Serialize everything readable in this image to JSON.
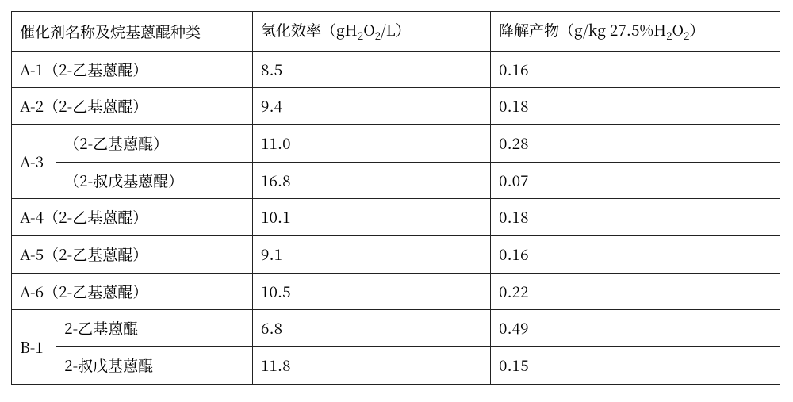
{
  "columns": {
    "c1": "催化剂名称及烷基蒽醌种类",
    "c2_prefix": "氢化效率（gH",
    "c2_sub1": "2",
    "c2_mid": "O",
    "c2_sub2": "2",
    "c2_suffix": "/L）",
    "c3_prefix": "降解产物（g/kg 27.5%H",
    "c3_sub1": "2",
    "c3_mid": "O",
    "c3_sub2": "2",
    "c3_suffix": "）"
  },
  "rows": [
    {
      "name": "A-1（2-乙基蒽醌）",
      "eff": "8.5",
      "deg": "0.16"
    },
    {
      "name": "A-2（2-乙基蒽醌）",
      "eff": "9.4",
      "deg": "0.18"
    }
  ],
  "group_a3": {
    "label": "A-3",
    "sub": [
      {
        "name": "（2-乙基蒽醌）",
        "eff": "11.0",
        "deg": "0.28"
      },
      {
        "name": "（2-叔戊基蒽醌）",
        "eff": "16.8",
        "deg": "0.07"
      }
    ]
  },
  "rows2": [
    {
      "name": "A-4（2-乙基蒽醌）",
      "eff": "10.1",
      "deg": "0.18"
    },
    {
      "name": "A-5（2-乙基蒽醌）",
      "eff": "9.1",
      "deg": "0.16"
    },
    {
      "name": "A-6（2-乙基蒽醌）",
      "eff": "10.5",
      "deg": "0.22"
    }
  ],
  "group_b1": {
    "label": "B-1",
    "sub": [
      {
        "name": "2-乙基蒽醌",
        "eff": "6.8",
        "deg": "0.49"
      },
      {
        "name": "2-叔戊基蒽醌",
        "eff": "11.8",
        "deg": "0.15"
      }
    ]
  }
}
